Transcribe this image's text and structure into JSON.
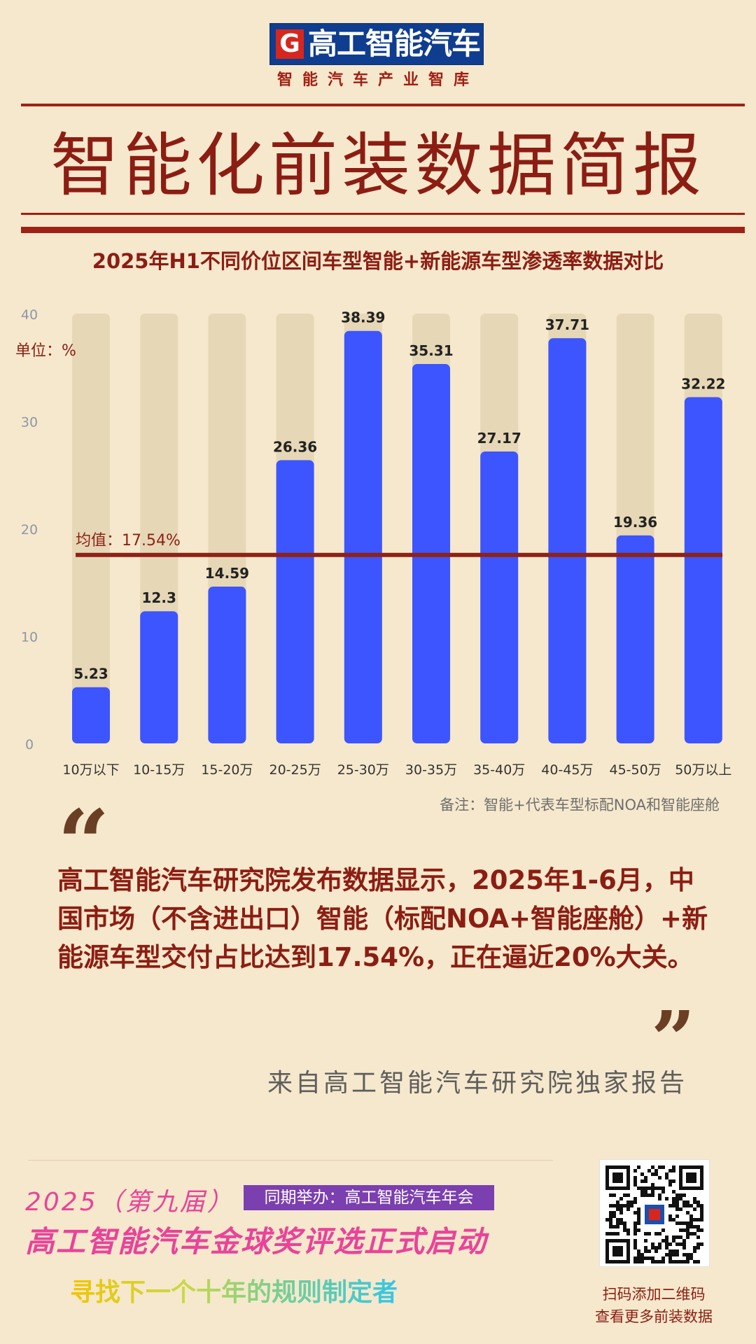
{
  "header": {
    "logo_mark": "G",
    "logo_text": "高工智能汽车",
    "slogan": "智能汽车产业智库",
    "title": "智能化前装数据简报"
  },
  "chart_title": "2025年H1不同价位区间车型智能+新能源车型渗透率数据对比",
  "chart_data": {
    "type": "bar",
    "title": "2025年H1不同价位区间车型智能+新能源车型渗透率数据对比",
    "unit_label": "单位：%",
    "categories": [
      "10万以下",
      "10-15万",
      "15-20万",
      "20-25万",
      "25-30万",
      "30-35万",
      "35-40万",
      "40-45万",
      "45-50万",
      "50万以上"
    ],
    "values": [
      5.23,
      12.3,
      14.59,
      26.36,
      38.39,
      35.31,
      27.17,
      37.71,
      19.36,
      32.22
    ],
    "value_labels": [
      "5.23",
      "12.3",
      "14.59",
      "26.36",
      "38.39",
      "35.31",
      "27.17",
      "37.71",
      "19.36",
      "32.22"
    ],
    "ylim": [
      0,
      40
    ],
    "yticks": [
      0,
      10,
      20,
      30,
      40
    ],
    "average": 17.54,
    "average_label": "均值：17.54%",
    "legend": "none",
    "grid": false,
    "colors": {
      "bar": "#3d55ff",
      "track": "#e6d7b7",
      "average_line": "#8e2216",
      "tick": "#8d97a8"
    }
  },
  "note": "备注：智能+代表车型标配NOA和智能座舱",
  "quote": {
    "open_mark": "“",
    "body": "高工智能汽车研究院发布数据显示，2025年1-6月，中国市场（不含进出口）智能（标配NOA+智能座舱）+新能源车型交付占比达到17.54%，正在逼近20%大关。",
    "close_mark": "”",
    "source": "来自高工智能汽车研究院独家报告"
  },
  "event": {
    "year": "2025（第九届）",
    "tag": "同期举办：高工智能汽车年会",
    "name": "高工智能汽车金球奖评选正式启动",
    "slogan": "寻找下一个十年的规则制定者"
  },
  "qr": {
    "caption_1": "扫码添加二维码",
    "caption_2": "查看更多前装数据"
  }
}
